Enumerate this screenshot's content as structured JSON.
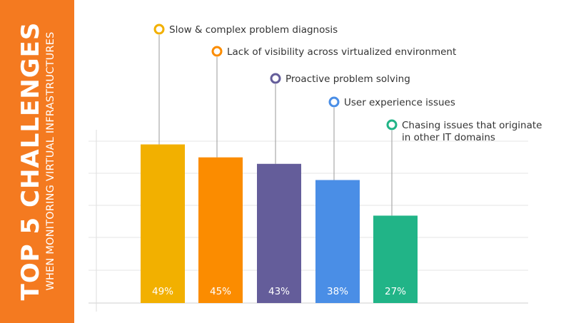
{
  "sidebar": {
    "title": "TOP 5 CHALLENGES",
    "subtitle": "WHEN MONITORING VIRTUAL INFRASTRUCTURES"
  },
  "chart_data": {
    "type": "bar",
    "categories": [
      "Slow & complex problem diagnosis",
      "Lack of visibility across virtualized environment",
      "Proactive problem solving",
      "User experience issues",
      "Chasing issues that originate in other IT domains"
    ],
    "category_lines": [
      [
        "Slow & complex problem diagnosis"
      ],
      [
        "Lack of visibility across virtualized environment"
      ],
      [
        "Proactive problem solving"
      ],
      [
        "User experience issues"
      ],
      [
        "Chasing issues that originate",
        "in other IT domains"
      ]
    ],
    "values": [
      49,
      45,
      43,
      38,
      27
    ],
    "value_labels": [
      "49%",
      "45%",
      "43%",
      "38%",
      "27%"
    ],
    "colors": [
      "#f2b000",
      "#fb8c00",
      "#645d9a",
      "#4a8ee6",
      "#21b487"
    ],
    "ylim": [
      0,
      50
    ],
    "grid": true,
    "legend": "label above each bar, connected by a line"
  }
}
